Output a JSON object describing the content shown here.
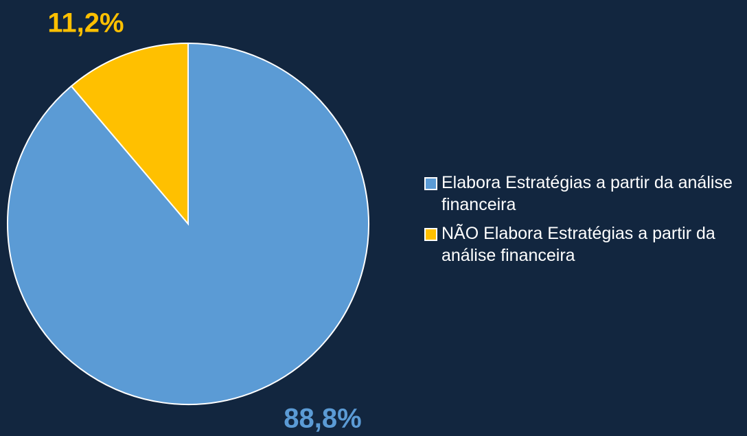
{
  "chart_data": {
    "type": "pie",
    "categories": [
      "Elabora Estratégias a partir da análise financeira",
      "NÃO Elabora Estratégias a partir da análise financeira"
    ],
    "values": [
      88.8,
      11.2
    ],
    "value_labels": [
      "88,8%",
      "11,2%"
    ],
    "colors": [
      "#5b9bd5",
      "#ffc000"
    ],
    "legend": "right"
  }
}
